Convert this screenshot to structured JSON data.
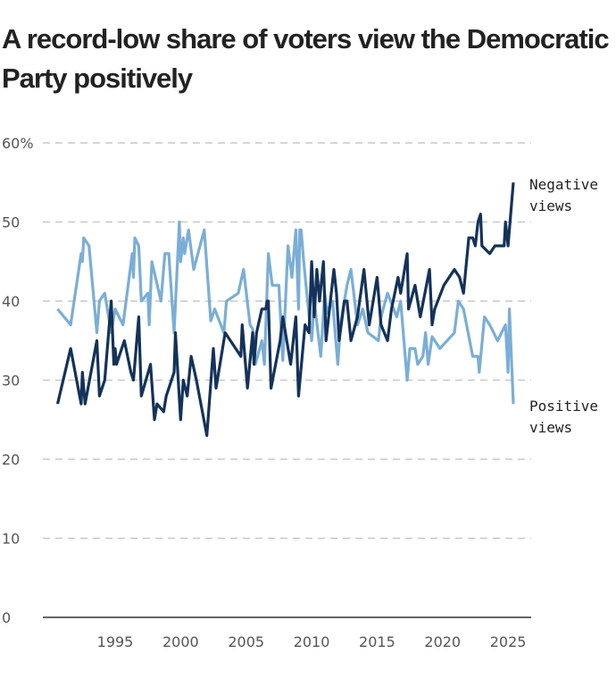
{
  "title": "A record-low share of voters view the Democratic Party positively",
  "chart_data": {
    "type": "line",
    "title": "A record-low share of voters view the Democratic Party positively",
    "xlabel": "",
    "ylabel": "",
    "xlim": [
      1990,
      2026
    ],
    "ylim": [
      0,
      60
    ],
    "y_ticks": [
      {
        "value": 60,
        "label": "60%"
      },
      {
        "value": 50,
        "label": "50"
      },
      {
        "value": 40,
        "label": "40"
      },
      {
        "value": 30,
        "label": "30"
      },
      {
        "value": 20,
        "label": "20"
      },
      {
        "value": 10,
        "label": "10"
      },
      {
        "value": 0,
        "label": "0"
      }
    ],
    "x_ticks": [
      {
        "value": 1995,
        "label": "1995"
      },
      {
        "value": 2000,
        "label": "2000"
      },
      {
        "value": 2005,
        "label": "2005"
      },
      {
        "value": 2010,
        "label": "2010"
      },
      {
        "value": 2015,
        "label": "2015"
      },
      {
        "value": 2020,
        "label": "2020"
      },
      {
        "value": 2025,
        "label": "2025"
      }
    ],
    "grid": true,
    "series": [
      {
        "name": "Negative views",
        "label_lines": [
          "Negative",
          "views"
        ],
        "color": "#14325a",
        "points": [
          [
            1990.6,
            27
          ],
          [
            1991.6,
            34
          ],
          [
            1992.4,
            27
          ],
          [
            1992.5,
            31
          ],
          [
            1992.7,
            27
          ],
          [
            1993.6,
            35
          ],
          [
            1993.8,
            28
          ],
          [
            1994.2,
            30
          ],
          [
            1994.7,
            40
          ],
          [
            1994.9,
            32
          ],
          [
            1995.0,
            34
          ],
          [
            1995.1,
            32
          ],
          [
            1995.7,
            35
          ],
          [
            1996.2,
            31
          ],
          [
            1996.4,
            30
          ],
          [
            1996.8,
            38
          ],
          [
            1997.0,
            28
          ],
          [
            1997.7,
            32
          ],
          [
            1998.0,
            25
          ],
          [
            1998.2,
            27
          ],
          [
            1998.7,
            26
          ],
          [
            1998.9,
            28
          ],
          [
            1999.5,
            31
          ],
          [
            1999.6,
            36
          ],
          [
            2000.0,
            25
          ],
          [
            2000.2,
            30
          ],
          [
            2000.5,
            28
          ],
          [
            2000.8,
            33
          ],
          [
            2001.2,
            30
          ],
          [
            2002.0,
            23
          ],
          [
            2002.5,
            34
          ],
          [
            2002.7,
            29
          ],
          [
            2002.9,
            31
          ],
          [
            2003.4,
            36
          ],
          [
            2004.6,
            33
          ],
          [
            2004.7,
            37
          ],
          [
            2005.1,
            29
          ],
          [
            2005.5,
            36
          ],
          [
            2005.6,
            32
          ],
          [
            2005.8,
            36
          ],
          [
            2006.2,
            39
          ],
          [
            2006.5,
            39
          ],
          [
            2006.6,
            40
          ],
          [
            2006.7,
            40
          ],
          [
            2006.9,
            29
          ],
          [
            2007.6,
            35
          ],
          [
            2007.8,
            38
          ],
          [
            2008.4,
            32
          ],
          [
            2008.8,
            38
          ],
          [
            2009.0,
            28
          ],
          [
            2009.5,
            37
          ],
          [
            2009.8,
            36
          ],
          [
            2010.0,
            45
          ],
          [
            2010.2,
            38
          ],
          [
            2010.4,
            44
          ],
          [
            2010.6,
            40
          ],
          [
            2010.9,
            45
          ],
          [
            2011.1,
            35
          ],
          [
            2011.3,
            38
          ],
          [
            2011.7,
            44
          ],
          [
            2011.9,
            41
          ],
          [
            2012.1,
            35
          ],
          [
            2012.5,
            40
          ],
          [
            2012.7,
            40
          ],
          [
            2013.0,
            35
          ],
          [
            2013.5,
            38
          ],
          [
            2014.0,
            44
          ],
          [
            2014.4,
            37
          ],
          [
            2015.0,
            43
          ],
          [
            2015.3,
            37
          ],
          [
            2015.8,
            35
          ],
          [
            2016.1,
            39
          ],
          [
            2016.6,
            43
          ],
          [
            2016.8,
            41
          ],
          [
            2017.3,
            46
          ],
          [
            2017.4,
            39
          ],
          [
            2017.9,
            42
          ],
          [
            2018.3,
            38
          ],
          [
            2019.0,
            44
          ],
          [
            2019.2,
            37
          ],
          [
            2019.4,
            39
          ],
          [
            2020.1,
            42
          ],
          [
            2020.9,
            44
          ],
          [
            2021.3,
            43
          ],
          [
            2021.6,
            41
          ],
          [
            2022.0,
            48
          ],
          [
            2022.3,
            48
          ],
          [
            2022.5,
            47
          ],
          [
            2022.7,
            50
          ],
          [
            2022.9,
            51
          ],
          [
            2023.0,
            47
          ],
          [
            2023.6,
            46
          ],
          [
            2024.0,
            47
          ],
          [
            2024.7,
            47
          ],
          [
            2024.8,
            50
          ],
          [
            2025.0,
            47
          ],
          [
            2025.4,
            55
          ]
        ]
      },
      {
        "name": "Positive views",
        "label_lines": [
          "Positive",
          "views"
        ],
        "color": "#7aaed6",
        "points": [
          [
            1990.6,
            39
          ],
          [
            1991.6,
            37
          ],
          [
            1992.4,
            46
          ],
          [
            1992.5,
            45
          ],
          [
            1992.6,
            48
          ],
          [
            1993.0,
            47
          ],
          [
            1993.6,
            36
          ],
          [
            1993.8,
            40
          ],
          [
            1994.2,
            41
          ],
          [
            1994.7,
            36
          ],
          [
            1995.0,
            39
          ],
          [
            1995.6,
            37
          ],
          [
            1996.3,
            46
          ],
          [
            1996.4,
            43
          ],
          [
            1996.5,
            48
          ],
          [
            1996.8,
            47
          ],
          [
            1997.0,
            40
          ],
          [
            1997.5,
            41
          ],
          [
            1997.6,
            37
          ],
          [
            1997.8,
            45
          ],
          [
            1998.5,
            40
          ],
          [
            1998.8,
            46
          ],
          [
            1999.1,
            46
          ],
          [
            1999.5,
            36
          ],
          [
            1999.9,
            50
          ],
          [
            2000.0,
            45
          ],
          [
            2000.2,
            48
          ],
          [
            2000.3,
            46
          ],
          [
            2000.6,
            49
          ],
          [
            2001.0,
            44
          ],
          [
            2001.8,
            49
          ],
          [
            2002.3,
            37.5
          ],
          [
            2002.6,
            39
          ],
          [
            2003.3,
            36
          ],
          [
            2003.5,
            40
          ],
          [
            2004.4,
            41
          ],
          [
            2004.8,
            44
          ],
          [
            2005.3,
            37
          ],
          [
            2005.5,
            36.5
          ],
          [
            2005.7,
            32
          ],
          [
            2006.2,
            35
          ],
          [
            2006.4,
            32
          ],
          [
            2006.7,
            46
          ],
          [
            2007.0,
            42
          ],
          [
            2007.5,
            42
          ],
          [
            2007.8,
            32.5
          ],
          [
            2008.2,
            47
          ],
          [
            2008.5,
            43
          ],
          [
            2008.8,
            49
          ],
          [
            2009.0,
            39
          ],
          [
            2009.1,
            49
          ],
          [
            2009.2,
            49
          ],
          [
            2009.4,
            45
          ],
          [
            2009.6,
            41.5
          ],
          [
            2010.0,
            35
          ],
          [
            2010.2,
            40
          ],
          [
            2010.7,
            33
          ],
          [
            2011.0,
            41
          ],
          [
            2011.2,
            38.5
          ],
          [
            2011.6,
            40
          ],
          [
            2012.0,
            32
          ],
          [
            2012.2,
            37
          ],
          [
            2012.7,
            42
          ],
          [
            2013.0,
            44
          ],
          [
            2013.5,
            37
          ],
          [
            2013.9,
            39
          ],
          [
            2014.3,
            36
          ],
          [
            2015.1,
            35
          ],
          [
            2015.3,
            38
          ],
          [
            2015.8,
            41
          ],
          [
            2016.5,
            38
          ],
          [
            2016.8,
            40
          ],
          [
            2017.3,
            30
          ],
          [
            2017.5,
            34
          ],
          [
            2017.9,
            34
          ],
          [
            2018.1,
            32
          ],
          [
            2018.5,
            33
          ],
          [
            2018.7,
            36
          ],
          [
            2018.9,
            32
          ],
          [
            2019.2,
            35.5
          ],
          [
            2019.8,
            34
          ],
          [
            2020.9,
            36
          ],
          [
            2021.2,
            40
          ],
          [
            2021.6,
            39
          ],
          [
            2022.3,
            33
          ],
          [
            2022.7,
            33
          ],
          [
            2022.8,
            31
          ],
          [
            2023.2,
            38
          ],
          [
            2023.6,
            37
          ],
          [
            2024.2,
            35
          ],
          [
            2024.8,
            37
          ],
          [
            2025.0,
            31
          ],
          [
            2025.1,
            39
          ],
          [
            2025.4,
            27
          ]
        ]
      }
    ]
  }
}
